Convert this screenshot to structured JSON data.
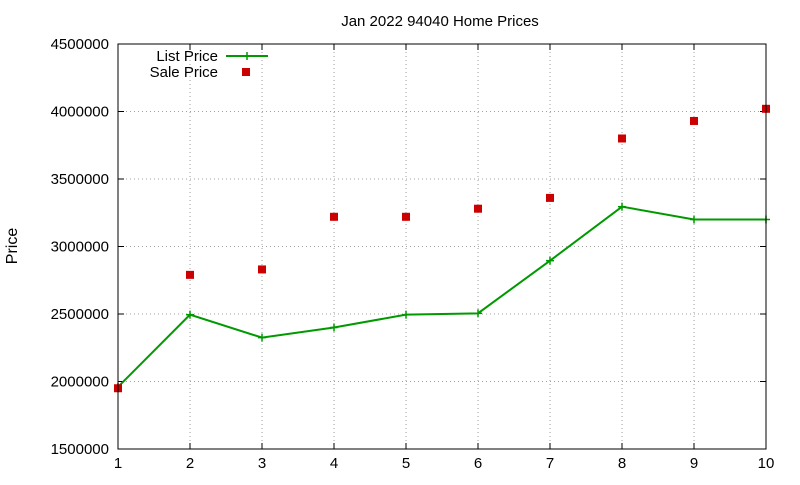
{
  "chart_data": {
    "type": "line",
    "title": "Jan 2022 94040 Home Prices",
    "xlabel": "",
    "ylabel": "Price",
    "xlim": [
      1,
      10
    ],
    "ylim": [
      1500000,
      4500000
    ],
    "xticks": [
      "1",
      "2",
      "3",
      "4",
      "5",
      "6",
      "7",
      "8",
      "9",
      "10"
    ],
    "yticks": [
      "1500000",
      "2000000",
      "2500000",
      "3000000",
      "3500000",
      "4000000",
      "4500000"
    ],
    "grid": true,
    "legend_position": "top-left",
    "x": [
      1,
      2,
      3,
      4,
      5,
      6,
      7,
      8,
      9,
      10
    ],
    "series": [
      {
        "name": "List Price",
        "style": "line-points",
        "marker": "plus",
        "color": "#009900",
        "values": [
          1960000,
          2495000,
          2325000,
          2400000,
          2495000,
          2505000,
          2895000,
          3295000,
          3200000,
          3200000
        ]
      },
      {
        "name": "Sale Price",
        "style": "points",
        "marker": "square",
        "color": "#cc0000",
        "values": [
          1950000,
          2790000,
          2830000,
          3220000,
          3220000,
          3280000,
          3360000,
          3800000,
          3930000,
          4020000
        ]
      }
    ]
  }
}
